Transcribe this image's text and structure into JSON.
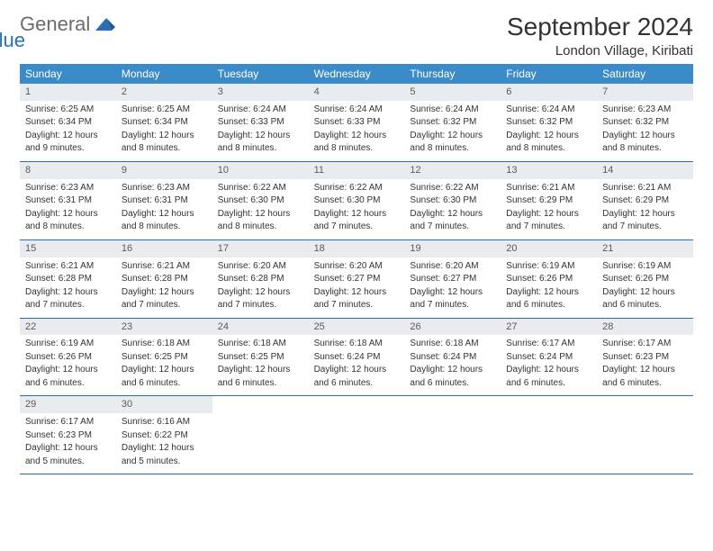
{
  "logo": {
    "text1": "General",
    "text2": "Blue"
  },
  "title": "September 2024",
  "location": "London Village, Kiribati",
  "weekdays": [
    "Sunday",
    "Monday",
    "Tuesday",
    "Wednesday",
    "Thursday",
    "Friday",
    "Saturday"
  ],
  "colors": {
    "header_bg": "#3b8bc9",
    "row_border": "#2a6fb5",
    "daynum_bg": "#e9ecef",
    "logo_gray": "#6b6b6b",
    "logo_blue": "#2a6fb5"
  },
  "days": [
    {
      "n": "1",
      "sunrise": "Sunrise: 6:25 AM",
      "sunset": "Sunset: 6:34 PM",
      "d1": "Daylight: 12 hours",
      "d2": "and 9 minutes."
    },
    {
      "n": "2",
      "sunrise": "Sunrise: 6:25 AM",
      "sunset": "Sunset: 6:34 PM",
      "d1": "Daylight: 12 hours",
      "d2": "and 8 minutes."
    },
    {
      "n": "3",
      "sunrise": "Sunrise: 6:24 AM",
      "sunset": "Sunset: 6:33 PM",
      "d1": "Daylight: 12 hours",
      "d2": "and 8 minutes."
    },
    {
      "n": "4",
      "sunrise": "Sunrise: 6:24 AM",
      "sunset": "Sunset: 6:33 PM",
      "d1": "Daylight: 12 hours",
      "d2": "and 8 minutes."
    },
    {
      "n": "5",
      "sunrise": "Sunrise: 6:24 AM",
      "sunset": "Sunset: 6:32 PM",
      "d1": "Daylight: 12 hours",
      "d2": "and 8 minutes."
    },
    {
      "n": "6",
      "sunrise": "Sunrise: 6:24 AM",
      "sunset": "Sunset: 6:32 PM",
      "d1": "Daylight: 12 hours",
      "d2": "and 8 minutes."
    },
    {
      "n": "7",
      "sunrise": "Sunrise: 6:23 AM",
      "sunset": "Sunset: 6:32 PM",
      "d1": "Daylight: 12 hours",
      "d2": "and 8 minutes."
    },
    {
      "n": "8",
      "sunrise": "Sunrise: 6:23 AM",
      "sunset": "Sunset: 6:31 PM",
      "d1": "Daylight: 12 hours",
      "d2": "and 8 minutes."
    },
    {
      "n": "9",
      "sunrise": "Sunrise: 6:23 AM",
      "sunset": "Sunset: 6:31 PM",
      "d1": "Daylight: 12 hours",
      "d2": "and 8 minutes."
    },
    {
      "n": "10",
      "sunrise": "Sunrise: 6:22 AM",
      "sunset": "Sunset: 6:30 PM",
      "d1": "Daylight: 12 hours",
      "d2": "and 8 minutes."
    },
    {
      "n": "11",
      "sunrise": "Sunrise: 6:22 AM",
      "sunset": "Sunset: 6:30 PM",
      "d1": "Daylight: 12 hours",
      "d2": "and 7 minutes."
    },
    {
      "n": "12",
      "sunrise": "Sunrise: 6:22 AM",
      "sunset": "Sunset: 6:30 PM",
      "d1": "Daylight: 12 hours",
      "d2": "and 7 minutes."
    },
    {
      "n": "13",
      "sunrise": "Sunrise: 6:21 AM",
      "sunset": "Sunset: 6:29 PM",
      "d1": "Daylight: 12 hours",
      "d2": "and 7 minutes."
    },
    {
      "n": "14",
      "sunrise": "Sunrise: 6:21 AM",
      "sunset": "Sunset: 6:29 PM",
      "d1": "Daylight: 12 hours",
      "d2": "and 7 minutes."
    },
    {
      "n": "15",
      "sunrise": "Sunrise: 6:21 AM",
      "sunset": "Sunset: 6:28 PM",
      "d1": "Daylight: 12 hours",
      "d2": "and 7 minutes."
    },
    {
      "n": "16",
      "sunrise": "Sunrise: 6:21 AM",
      "sunset": "Sunset: 6:28 PM",
      "d1": "Daylight: 12 hours",
      "d2": "and 7 minutes."
    },
    {
      "n": "17",
      "sunrise": "Sunrise: 6:20 AM",
      "sunset": "Sunset: 6:28 PM",
      "d1": "Daylight: 12 hours",
      "d2": "and 7 minutes."
    },
    {
      "n": "18",
      "sunrise": "Sunrise: 6:20 AM",
      "sunset": "Sunset: 6:27 PM",
      "d1": "Daylight: 12 hours",
      "d2": "and 7 minutes."
    },
    {
      "n": "19",
      "sunrise": "Sunrise: 6:20 AM",
      "sunset": "Sunset: 6:27 PM",
      "d1": "Daylight: 12 hours",
      "d2": "and 7 minutes."
    },
    {
      "n": "20",
      "sunrise": "Sunrise: 6:19 AM",
      "sunset": "Sunset: 6:26 PM",
      "d1": "Daylight: 12 hours",
      "d2": "and 6 minutes."
    },
    {
      "n": "21",
      "sunrise": "Sunrise: 6:19 AM",
      "sunset": "Sunset: 6:26 PM",
      "d1": "Daylight: 12 hours",
      "d2": "and 6 minutes."
    },
    {
      "n": "22",
      "sunrise": "Sunrise: 6:19 AM",
      "sunset": "Sunset: 6:26 PM",
      "d1": "Daylight: 12 hours",
      "d2": "and 6 minutes."
    },
    {
      "n": "23",
      "sunrise": "Sunrise: 6:18 AM",
      "sunset": "Sunset: 6:25 PM",
      "d1": "Daylight: 12 hours",
      "d2": "and 6 minutes."
    },
    {
      "n": "24",
      "sunrise": "Sunrise: 6:18 AM",
      "sunset": "Sunset: 6:25 PM",
      "d1": "Daylight: 12 hours",
      "d2": "and 6 minutes."
    },
    {
      "n": "25",
      "sunrise": "Sunrise: 6:18 AM",
      "sunset": "Sunset: 6:24 PM",
      "d1": "Daylight: 12 hours",
      "d2": "and 6 minutes."
    },
    {
      "n": "26",
      "sunrise": "Sunrise: 6:18 AM",
      "sunset": "Sunset: 6:24 PM",
      "d1": "Daylight: 12 hours",
      "d2": "and 6 minutes."
    },
    {
      "n": "27",
      "sunrise": "Sunrise: 6:17 AM",
      "sunset": "Sunset: 6:24 PM",
      "d1": "Daylight: 12 hours",
      "d2": "and 6 minutes."
    },
    {
      "n": "28",
      "sunrise": "Sunrise: 6:17 AM",
      "sunset": "Sunset: 6:23 PM",
      "d1": "Daylight: 12 hours",
      "d2": "and 6 minutes."
    },
    {
      "n": "29",
      "sunrise": "Sunrise: 6:17 AM",
      "sunset": "Sunset: 6:23 PM",
      "d1": "Daylight: 12 hours",
      "d2": "and 5 minutes."
    },
    {
      "n": "30",
      "sunrise": "Sunrise: 6:16 AM",
      "sunset": "Sunset: 6:22 PM",
      "d1": "Daylight: 12 hours",
      "d2": "and 5 minutes."
    }
  ]
}
